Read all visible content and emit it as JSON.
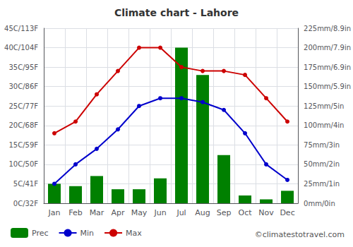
{
  "chart_data": {
    "type": "bar",
    "title": "Climate chart - Lahore",
    "categories": [
      "Jan",
      "Feb",
      "Mar",
      "Apr",
      "May",
      "Jun",
      "Jul",
      "Aug",
      "Sep",
      "Oct",
      "Nov",
      "Dec"
    ],
    "series": [
      {
        "name": "Prec",
        "type": "bar",
        "axis": "y2",
        "color": "#008000",
        "values": [
          25,
          22,
          35,
          18,
          18,
          32,
          200,
          165,
          62,
          10,
          5,
          16
        ]
      },
      {
        "name": "Min",
        "type": "line",
        "color": "#0000CC",
        "marker": "circle",
        "line_style": "solid",
        "values": [
          5,
          10,
          14,
          19,
          25,
          27,
          27,
          26,
          24,
          18,
          10,
          6
        ]
      },
      {
        "name": "Max",
        "type": "line",
        "color": "#CC0000",
        "marker": "circle",
        "line_style": "solid",
        "values": [
          18,
          21,
          28,
          34,
          40,
          40,
          35,
          34,
          34,
          33,
          27,
          21
        ]
      }
    ],
    "ylim": [
      0,
      45
    ],
    "yticks": [
      {
        "value": 0,
        "label": "0C/32F"
      },
      {
        "value": 5,
        "label": "5C/41F"
      },
      {
        "value": 10,
        "label": "10C/50F"
      },
      {
        "value": 15,
        "label": "15C/59F"
      },
      {
        "value": 20,
        "label": "20C/68F"
      },
      {
        "value": 25,
        "label": "25C/77F"
      },
      {
        "value": 30,
        "label": "30C/86F"
      },
      {
        "value": 35,
        "label": "35C/95F"
      },
      {
        "value": 40,
        "label": "40C/104F"
      },
      {
        "value": 45,
        "label": "45C/113F"
      }
    ],
    "y2lim": [
      0,
      225
    ],
    "y2ticks": [
      {
        "value": 0,
        "label": "0mm/0in"
      },
      {
        "value": 25,
        "label": "25mm/1in"
      },
      {
        "value": 50,
        "label": "50mm/2in"
      },
      {
        "value": 75,
        "label": "75mm/3in"
      },
      {
        "value": 100,
        "label": "100mm/4in"
      },
      {
        "value": 125,
        "label": "125mm/5in"
      },
      {
        "value": 150,
        "label": "150mm/5.9in"
      },
      {
        "value": 175,
        "label": "175mm/6.9in"
      },
      {
        "value": 200,
        "label": "200mm/7.9in"
      },
      {
        "value": 225,
        "label": "225mm/8.9in"
      }
    ],
    "grid": true,
    "legend": "bottom",
    "annotations": [
      "©climatestotravel.com"
    ]
  }
}
